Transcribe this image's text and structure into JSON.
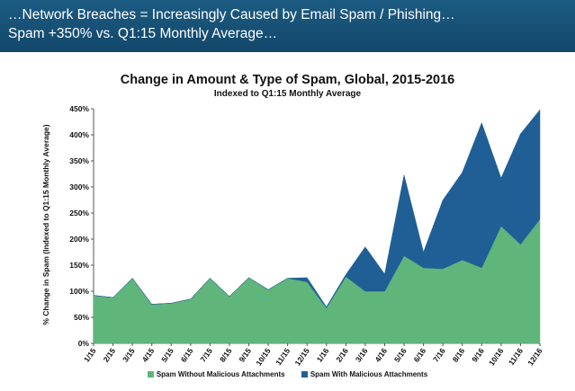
{
  "header": {
    "line1": "…Network Breaches = Increasingly Caused by Email Spam / Phishing…",
    "line2": "Spam +350% vs. Q1:15 Monthly Average…"
  },
  "colors": {
    "banner": "#1a5578",
    "series_green": "#5fb57a",
    "series_blue": "#1f5f96"
  },
  "chart_data": {
    "type": "area",
    "stacked": true,
    "title": "Change in Amount & Type of Spam, Global, 2015-2016",
    "subtitle": "Indexed to Q1:15 Monthly Average",
    "xlabel": "",
    "ylabel": "% Change in Spam (Indexed to Q1:15 Monthly Average)",
    "ylim": [
      0,
      450
    ],
    "yticks": [
      "0%",
      "50%",
      "100%",
      "150%",
      "200%",
      "250%",
      "300%",
      "350%",
      "400%",
      "450%"
    ],
    "categories": [
      "1/15",
      "2/15",
      "3/15",
      "4/15",
      "5/15",
      "6/15",
      "7/15",
      "8/15",
      "9/15",
      "10/15",
      "11/15",
      "12/15",
      "1/16",
      "2/16",
      "3/16",
      "4/16",
      "5/16",
      "6/16",
      "7/16",
      "8/16",
      "9/16",
      "10/16",
      "11/16",
      "12/16"
    ],
    "series": [
      {
        "name": "Spam Without Malicious Attachments",
        "values": [
          92,
          88,
          125,
          75,
          77,
          85,
          125,
          90,
          126,
          103,
          125,
          118,
          68,
          128,
          100,
          100,
          168,
          145,
          143,
          160,
          145,
          225,
          190,
          238
        ]
      },
      {
        "name": "Spam With Malicious Attachments",
        "values": [
          0,
          0,
          0,
          0,
          0,
          0,
          0,
          0,
          0,
          0,
          0,
          8,
          2,
          4,
          85,
          33,
          155,
          30,
          132,
          168,
          278,
          92,
          212,
          210
        ]
      }
    ]
  }
}
